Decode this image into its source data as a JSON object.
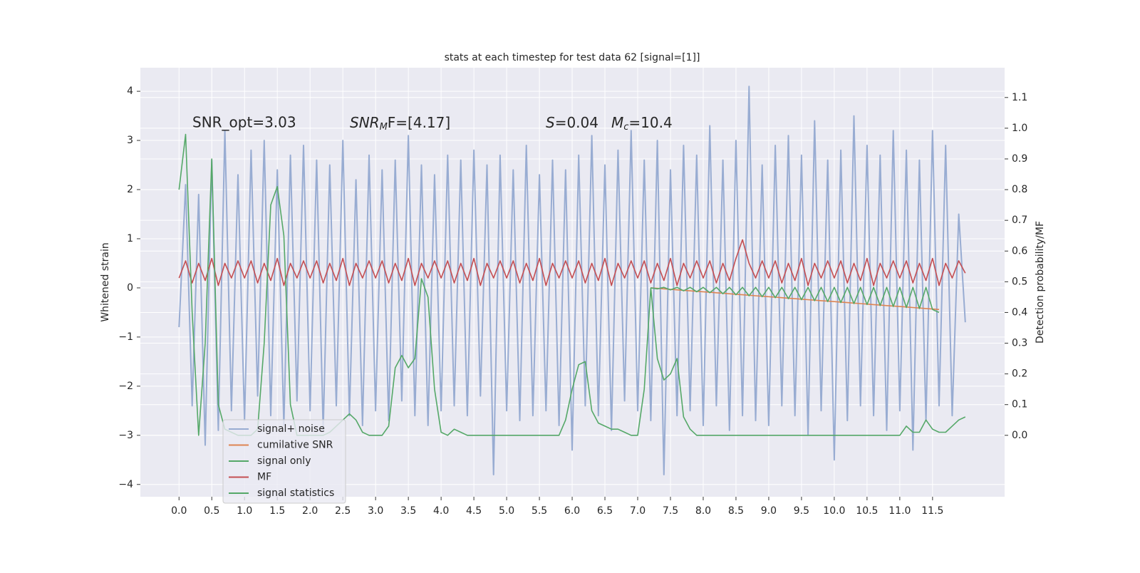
{
  "chart_data": {
    "type": "line",
    "title": "stats at each timestep for test data 62 [signal=[1]]",
    "ylabel": "Whitened strain",
    "y2label": "Detection probability/MF",
    "annotations": [
      {
        "text": "SNR_opt=3.03"
      },
      {
        "main": "SNR",
        "sub": "M",
        "tail": "F=[4.17]"
      },
      {
        "main": "S",
        "tail": "=0.04"
      },
      {
        "main": "M",
        "sub": "c",
        "tail": "=10.4"
      }
    ],
    "grid": true,
    "legend": "lower left",
    "xlim": [
      -0.59,
      12.6
    ],
    "ylim": [
      -4.25,
      4.48
    ],
    "y2lim": [
      -0.2,
      1.197
    ],
    "xticks": [
      {
        "value": 0,
        "label": "0.0"
      },
      {
        "value": 0.5,
        "label": "0.5"
      },
      {
        "value": 1,
        "label": "1.0"
      },
      {
        "value": 1.5,
        "label": "1.5"
      },
      {
        "value": 2,
        "label": "2.0"
      },
      {
        "value": 2.5,
        "label": "2.5"
      },
      {
        "value": 3,
        "label": "3.0"
      },
      {
        "value": 3.5,
        "label": "3.5"
      },
      {
        "value": 4,
        "label": "4.0"
      },
      {
        "value": 4.5,
        "label": "4.5"
      },
      {
        "value": 5,
        "label": "5.0"
      },
      {
        "value": 5.5,
        "label": "5.5"
      },
      {
        "value": 6,
        "label": "6.0"
      },
      {
        "value": 6.5,
        "label": "6.5"
      },
      {
        "value": 7,
        "label": "7.0"
      },
      {
        "value": 7.5,
        "label": "7.5"
      },
      {
        "value": 8,
        "label": "8.0"
      },
      {
        "value": 8.5,
        "label": "8.5"
      },
      {
        "value": 9,
        "label": "9.0"
      },
      {
        "value": 9.5,
        "label": "9.5"
      },
      {
        "value": 10,
        "label": "10.0"
      },
      {
        "value": 10.5,
        "label": "10.5"
      },
      {
        "value": 11,
        "label": "11.0"
      },
      {
        "value": 11.5,
        "label": "11.5"
      }
    ],
    "yticks": [
      {
        "value": -4,
        "label": "−4"
      },
      {
        "value": -3,
        "label": "−3"
      },
      {
        "value": -2,
        "label": "−2"
      },
      {
        "value": -1,
        "label": "−1"
      },
      0,
      1,
      2,
      3,
      4
    ],
    "y2ticks": [
      {
        "value": 0,
        "label": "0.0"
      },
      0.1,
      0.2,
      0.3,
      0.4,
      0.5,
      0.6,
      0.7,
      0.8,
      0.9,
      {
        "value": 1,
        "label": "1.0"
      },
      1.1
    ],
    "x": [
      0,
      0.1,
      0.2,
      0.3,
      0.4,
      0.5,
      0.6,
      0.7,
      0.8,
      0.9,
      1,
      1.1,
      1.2,
      1.3,
      1.4,
      1.5,
      1.6,
      1.7,
      1.8,
      1.9,
      2,
      2.1,
      2.2,
      2.3,
      2.4,
      2.5,
      2.6,
      2.7,
      2.8,
      2.9,
      3,
      3.1,
      3.2,
      3.3,
      3.4,
      3.5,
      3.6,
      3.7,
      3.8,
      3.9,
      4,
      4.1,
      4.2,
      4.3,
      4.4,
      4.5,
      4.6,
      4.7,
      4.8,
      4.9,
      5,
      5.1,
      5.2,
      5.3,
      5.4,
      5.5,
      5.6,
      5.7,
      5.8,
      5.9,
      6,
      6.1,
      6.2,
      6.3,
      6.4,
      6.5,
      6.6,
      6.7,
      6.8,
      6.9,
      7,
      7.1,
      7.2,
      7.3,
      7.4,
      7.5,
      7.6,
      7.7,
      7.8,
      7.9,
      8,
      8.1,
      8.2,
      8.3,
      8.4,
      8.5,
      8.6,
      8.7,
      8.8,
      8.9,
      9,
      9.1,
      9.2,
      9.3,
      9.4,
      9.5,
      9.6,
      9.7,
      9.8,
      9.9,
      10,
      10.1,
      10.2,
      10.3,
      10.4,
      10.5,
      10.6,
      10.7,
      10.8,
      10.9,
      11,
      11.1,
      11.2,
      11.3,
      11.4,
      11.5,
      11.6,
      11.7,
      11.8,
      11.9,
      12
    ],
    "series": [
      {
        "name": "signal+ noise",
        "color": "#98acd2",
        "values": [
          -0.8,
          2.1,
          -2.4,
          1.9,
          -3.2,
          2.6,
          -2.9,
          3.2,
          -2.5,
          2.3,
          -2.7,
          2.8,
          -2.2,
          3.0,
          -2.6,
          2.4,
          -2.8,
          2.7,
          -2.3,
          2.9,
          -2.5,
          2.6,
          -2.9,
          2.5,
          -2.4,
          3.0,
          -2.6,
          2.2,
          -2.8,
          2.7,
          -2.5,
          2.4,
          -2.7,
          2.6,
          -2.3,
          3.1,
          -2.6,
          2.5,
          -2.8,
          2.3,
          -2.5,
          2.7,
          -2.4,
          2.6,
          -2.6,
          2.8,
          -2.2,
          2.5,
          -3.8,
          2.7,
          -2.5,
          2.4,
          -2.7,
          2.9,
          -2.6,
          2.3,
          -2.5,
          2.6,
          -2.8,
          2.4,
          -3.3,
          2.7,
          -2.4,
          3.1,
          -2.6,
          2.5,
          -2.9,
          2.8,
          -2.3,
          3.2,
          -2.5,
          2.6,
          -2.7,
          3.0,
          -3.8,
          2.4,
          -2.6,
          2.9,
          -2.5,
          2.7,
          -2.8,
          3.3,
          -2.4,
          2.6,
          -2.9,
          3.0,
          -2.6,
          4.1,
          -2.7,
          2.5,
          -2.8,
          2.9,
          -2.4,
          3.1,
          -2.6,
          2.7,
          -3.0,
          3.4,
          -2.5,
          2.6,
          -3.5,
          2.8,
          -2.7,
          3.5,
          -2.4,
          2.9,
          -2.6,
          2.7,
          -2.9,
          3.2,
          -2.5,
          2.8,
          -3.3,
          2.6,
          -2.7,
          3.2,
          -2.4,
          2.9,
          -2.6,
          1.5,
          -0.7
        ]
      },
      {
        "name": "cumilative SNR",
        "color": "#dd8452",
        "values": [
          null,
          null,
          null,
          null,
          null,
          null,
          null,
          null,
          null,
          null,
          null,
          null,
          null,
          null,
          null,
          null,
          null,
          null,
          null,
          null,
          null,
          null,
          null,
          null,
          null,
          null,
          null,
          null,
          null,
          null,
          null,
          null,
          null,
          null,
          null,
          null,
          null,
          null,
          null,
          null,
          null,
          null,
          null,
          null,
          null,
          null,
          null,
          null,
          null,
          null,
          null,
          null,
          null,
          null,
          null,
          null,
          null,
          null,
          null,
          null,
          null,
          null,
          null,
          null,
          null,
          null,
          null,
          null,
          null,
          null,
          null,
          null,
          0,
          -0.01,
          -0.02,
          -0.03,
          -0.04,
          -0.05,
          -0.06,
          -0.07,
          -0.08,
          -0.09,
          -0.1,
          -0.11,
          -0.12,
          -0.13,
          -0.14,
          -0.15,
          -0.16,
          -0.17,
          -0.18,
          -0.19,
          -0.2,
          -0.21,
          -0.22,
          -0.23,
          -0.24,
          -0.25,
          -0.26,
          -0.27,
          -0.28,
          -0.29,
          -0.3,
          -0.31,
          -0.32,
          -0.33,
          -0.34,
          -0.35,
          -0.36,
          -0.37,
          -0.38,
          -0.39,
          -0.4,
          -0.41,
          -0.42,
          -0.43,
          -0.44,
          null,
          null,
          null,
          null
        ]
      },
      {
        "name": "signal only",
        "color": "#55a868",
        "values": [
          null,
          null,
          null,
          null,
          null,
          null,
          null,
          null,
          null,
          null,
          null,
          null,
          null,
          null,
          null,
          null,
          null,
          null,
          null,
          null,
          null,
          null,
          null,
          null,
          null,
          null,
          null,
          null,
          null,
          null,
          null,
          null,
          null,
          null,
          null,
          null,
          null,
          null,
          null,
          null,
          null,
          null,
          null,
          null,
          null,
          null,
          null,
          null,
          null,
          null,
          null,
          null,
          null,
          null,
          null,
          null,
          null,
          null,
          null,
          null,
          null,
          null,
          null,
          null,
          null,
          null,
          null,
          null,
          null,
          null,
          null,
          null,
          0,
          -0.02,
          0.01,
          -0.04,
          0.01,
          -0.06,
          0.01,
          -0.08,
          0.01,
          -0.1,
          0.01,
          -0.12,
          0.01,
          -0.14,
          0.01,
          -0.16,
          0.01,
          -0.18,
          0.01,
          -0.2,
          0.01,
          -0.22,
          0.01,
          -0.24,
          0.01,
          -0.26,
          0.01,
          -0.28,
          0.01,
          -0.3,
          0.01,
          -0.32,
          0.01,
          -0.34,
          0.01,
          -0.36,
          0.01,
          -0.38,
          0.01,
          -0.4,
          0.01,
          -0.42,
          0.01,
          -0.44,
          -0.5,
          null,
          null,
          null,
          null
        ]
      },
      {
        "name": "MF",
        "color": "#c44e52",
        "values": [
          0.2,
          0.55,
          0.1,
          0.5,
          0.15,
          0.6,
          0.05,
          0.5,
          0.2,
          0.55,
          0.2,
          0.55,
          0.1,
          0.5,
          0.15,
          0.6,
          0.05,
          0.5,
          0.2,
          0.55,
          0.2,
          0.55,
          0.1,
          0.5,
          0.15,
          0.6,
          0.05,
          0.5,
          0.2,
          0.55,
          0.2,
          0.55,
          0.1,
          0.5,
          0.15,
          0.6,
          0.05,
          0.5,
          0.2,
          0.55,
          0.2,
          0.55,
          0.1,
          0.5,
          0.15,
          0.6,
          0.05,
          0.5,
          0.2,
          0.55,
          0.2,
          0.55,
          0.1,
          0.5,
          0.15,
          0.6,
          0.05,
          0.5,
          0.2,
          0.55,
          0.2,
          0.55,
          0.1,
          0.5,
          0.15,
          0.6,
          0.05,
          0.5,
          0.2,
          0.55,
          0.2,
          0.55,
          0.1,
          0.5,
          0.15,
          0.6,
          0.05,
          0.5,
          0.2,
          0.55,
          0.2,
          0.55,
          0.1,
          0.5,
          0.15,
          0.6,
          0.98,
          0.5,
          0.2,
          0.55,
          0.2,
          0.55,
          0.1,
          0.5,
          0.15,
          0.6,
          0.05,
          0.5,
          0.2,
          0.55,
          0.2,
          0.55,
          0.1,
          0.5,
          0.15,
          0.6,
          0.05,
          0.5,
          0.2,
          0.55,
          0.2,
          0.55,
          0.1,
          0.5,
          0.15,
          0.6,
          0.05,
          0.5,
          0.2,
          0.55,
          0.3
        ]
      },
      {
        "name": "signal statistics",
        "color": "#55a868",
        "axis": "y2",
        "values": [
          0.8,
          0.98,
          0.4,
          0,
          0.3,
          0.9,
          0.1,
          0.02,
          0.01,
          0,
          0,
          0,
          0.02,
          0.3,
          0.75,
          0.81,
          0.65,
          0.1,
          0,
          0,
          0,
          0,
          0,
          0.01,
          0.03,
          0.05,
          0.07,
          0.05,
          0.01,
          0,
          0,
          0,
          0.03,
          0.22,
          0.26,
          0.22,
          0.25,
          0.51,
          0.45,
          0.15,
          0.01,
          0,
          0.02,
          0.01,
          0,
          0,
          0,
          0,
          0,
          0,
          0,
          0,
          0,
          0,
          0,
          0,
          0,
          0,
          0,
          0.05,
          0.15,
          0.23,
          0.24,
          0.08,
          0.04,
          0.03,
          0.02,
          0.02,
          0.01,
          0,
          0,
          0.15,
          0.48,
          0.25,
          0.18,
          0.2,
          0.25,
          0.06,
          0.02,
          0,
          0,
          0,
          0,
          0,
          0,
          0,
          0,
          0,
          0,
          0,
          0,
          0,
          0,
          0,
          0,
          0,
          0,
          0,
          0,
          0,
          0,
          0,
          0,
          0,
          0,
          0,
          0,
          0,
          0,
          0,
          0,
          0.03,
          0.01,
          0.01,
          0.05,
          0.02,
          0.01,
          0.01,
          0.03,
          0.05,
          0.06
        ]
      }
    ]
  }
}
